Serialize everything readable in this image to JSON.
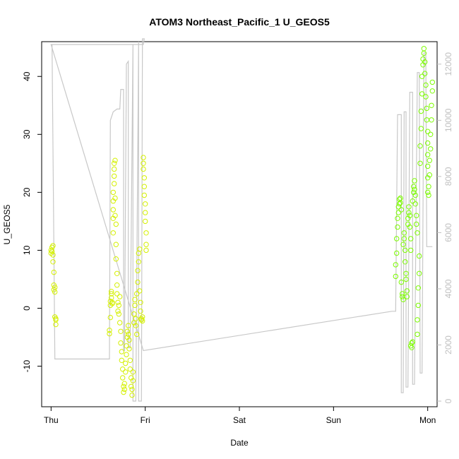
{
  "chart_data": {
    "type": "scatter",
    "title": "ATOM3 Northeast_Pacific_1 U_GEOS5",
    "xlabel": "Date",
    "ylabel": "U_GEOS5",
    "x_tick_labels": [
      "Thu",
      "Fri",
      "Sat",
      "Sun",
      "Mon"
    ],
    "x_tick_days": [
      0,
      1,
      2,
      3,
      4
    ],
    "xlim": [
      -0.1,
      4.1
    ],
    "ylim": [
      -17,
      46
    ],
    "y_ticks": [
      -10,
      0,
      10,
      20,
      30,
      40
    ],
    "y_right_label": "",
    "y_right_ticks": [
      0,
      2000,
      4000,
      6000,
      8000,
      10000,
      12000
    ],
    "y_right_lim": [
      -200,
      12800
    ],
    "grid": false,
    "colors": {
      "lime": "#7cfc00",
      "yellow_green": "#d4f000",
      "gray": "#c8c8c8",
      "right_axis": "#c0c0c0"
    },
    "series": [
      {
        "axis": "left",
        "marker": "open-circle",
        "points": [
          [
            0.0,
            9.5
          ],
          [
            0.0,
            10.0
          ],
          [
            0.01,
            10.5
          ],
          [
            0.01,
            9.8
          ],
          [
            0.02,
            9.2
          ],
          [
            0.02,
            10.8
          ],
          [
            0.02,
            8.0
          ],
          [
            0.03,
            6.2
          ],
          [
            0.03,
            4.0
          ],
          [
            0.03,
            3.2
          ],
          [
            0.04,
            2.8
          ],
          [
            0.04,
            3.6
          ],
          [
            0.04,
            -1.5
          ],
          [
            0.05,
            -1.8
          ],
          [
            0.05,
            -2.8
          ],
          [
            0.05,
            -2.0
          ],
          [
            0.62,
            -3.8
          ],
          [
            0.62,
            -4.4
          ],
          [
            0.63,
            -1.6
          ],
          [
            0.63,
            0.5
          ],
          [
            0.63,
            1.2
          ],
          [
            0.64,
            1.8
          ],
          [
            0.64,
            2.5
          ],
          [
            0.64,
            2.9
          ],
          [
            0.65,
            0.8
          ],
          [
            0.65,
            1.0
          ],
          [
            0.66,
            13.0
          ],
          [
            0.66,
            15.5
          ],
          [
            0.66,
            17.0
          ],
          [
            0.66,
            18.5
          ],
          [
            0.66,
            20.0
          ],
          [
            0.67,
            21.5
          ],
          [
            0.67,
            22.8
          ],
          [
            0.67,
            24.0
          ],
          [
            0.67,
            25.0
          ],
          [
            0.68,
            25.5
          ],
          [
            0.68,
            19.0
          ],
          [
            0.68,
            16.0
          ],
          [
            0.69,
            14.5
          ],
          [
            0.69,
            11.0
          ],
          [
            0.69,
            8.5
          ],
          [
            0.7,
            6.0
          ],
          [
            0.7,
            4.0
          ],
          [
            0.7,
            2.5
          ],
          [
            0.71,
            1.0
          ],
          [
            0.71,
            -0.5
          ],
          [
            0.72,
            -1.0
          ],
          [
            0.72,
            0.5
          ],
          [
            0.73,
            2.0
          ],
          [
            0.73,
            -2.5
          ],
          [
            0.74,
            -4.0
          ],
          [
            0.74,
            -6.0
          ],
          [
            0.75,
            -7.5
          ],
          [
            0.75,
            -9.0
          ],
          [
            0.76,
            -10.5
          ],
          [
            0.76,
            -12.0
          ],
          [
            0.77,
            -13.5
          ],
          [
            0.77,
            -14.5
          ],
          [
            0.78,
            -14.0
          ],
          [
            0.78,
            -13.0
          ],
          [
            0.79,
            -11.0
          ],
          [
            0.79,
            -9.5
          ],
          [
            0.8,
            -8.0
          ],
          [
            0.8,
            -6.5
          ],
          [
            0.81,
            -5.0
          ],
          [
            0.81,
            -4.0
          ],
          [
            0.82,
            -3.0
          ],
          [
            0.82,
            -4.5
          ],
          [
            0.83,
            -5.5
          ],
          [
            0.83,
            -7.0
          ],
          [
            0.84,
            -9.0
          ],
          [
            0.84,
            -10.5
          ],
          [
            0.85,
            -12.0
          ],
          [
            0.85,
            -13.5
          ],
          [
            0.86,
            -15.0
          ],
          [
            0.86,
            -14.0
          ],
          [
            0.87,
            -12.5
          ],
          [
            0.87,
            -11.0
          ],
          [
            0.88,
            -2.5
          ],
          [
            0.88,
            -1.0
          ],
          [
            0.89,
            0.5
          ],
          [
            0.89,
            1.5
          ],
          [
            0.9,
            -1.8
          ],
          [
            0.9,
            -3.0
          ],
          [
            0.91,
            -4.5
          ],
          [
            0.91,
            2.5
          ],
          [
            0.92,
            4.5
          ],
          [
            0.92,
            6.5
          ],
          [
            0.93,
            8.0
          ],
          [
            0.93,
            9.5
          ],
          [
            0.94,
            10.2
          ],
          [
            0.94,
            3.0
          ],
          [
            0.95,
            1.0
          ],
          [
            0.95,
            -0.5
          ],
          [
            0.96,
            -1.8
          ],
          [
            0.96,
            -2.0
          ],
          [
            0.97,
            -1.5
          ],
          [
            0.97,
            -2.2
          ],
          [
            0.98,
            26.0
          ],
          [
            0.98,
            25.0
          ],
          [
            0.98,
            24.0
          ],
          [
            0.99,
            22.5
          ],
          [
            0.99,
            21.0
          ],
          [
            0.99,
            19.5
          ],
          [
            1.0,
            18.0
          ],
          [
            1.0,
            16.5
          ],
          [
            1.0,
            15.0
          ],
          [
            1.01,
            13.0
          ],
          [
            1.01,
            11.0
          ],
          [
            1.01,
            10.0
          ],
          [
            3.66,
            5.5
          ],
          [
            3.66,
            7.5
          ],
          [
            3.67,
            9.5
          ],
          [
            3.67,
            12.0
          ],
          [
            3.68,
            14.0
          ],
          [
            3.68,
            15.5
          ],
          [
            3.69,
            16.5
          ],
          [
            3.69,
            17.5
          ],
          [
            3.7,
            18.0
          ],
          [
            3.7,
            18.8
          ],
          [
            3.71,
            19.0
          ],
          [
            3.71,
            18.2
          ],
          [
            3.72,
            17.0
          ],
          [
            3.72,
            4.5
          ],
          [
            3.73,
            2.5
          ],
          [
            3.73,
            2.0
          ],
          [
            3.74,
            1.5
          ],
          [
            3.74,
            11.0
          ],
          [
            3.75,
            13.0
          ],
          [
            3.75,
            12.0
          ],
          [
            3.76,
            10.0
          ],
          [
            3.76,
            8.0
          ],
          [
            3.77,
            6.0
          ],
          [
            3.77,
            5.0
          ],
          [
            3.78,
            3.0
          ],
          [
            3.78,
            2.0
          ],
          [
            3.79,
            14.5
          ],
          [
            3.79,
            15.5
          ],
          [
            3.8,
            16.5
          ],
          [
            3.8,
            17.5
          ],
          [
            3.81,
            16.0
          ],
          [
            3.81,
            14.0
          ],
          [
            3.82,
            12.0
          ],
          [
            3.82,
            10.0
          ],
          [
            3.82,
            -6.5
          ],
          [
            3.83,
            -6.8
          ],
          [
            3.83,
            -6.0
          ],
          [
            3.84,
            -5.8
          ],
          [
            3.84,
            18.5
          ],
          [
            3.85,
            20.0
          ],
          [
            3.85,
            21.0
          ],
          [
            3.86,
            22.0
          ],
          [
            3.86,
            20.5
          ],
          [
            3.87,
            19.5
          ],
          [
            3.87,
            18.0
          ],
          [
            3.88,
            16.0
          ],
          [
            3.88,
            14.5
          ],
          [
            3.89,
            13.0
          ],
          [
            3.89,
            -4.5
          ],
          [
            3.89,
            -2.0
          ],
          [
            3.9,
            0.5
          ],
          [
            3.9,
            3.5
          ],
          [
            3.91,
            6.0
          ],
          [
            3.91,
            9.0
          ],
          [
            3.92,
            25.0
          ],
          [
            3.92,
            28.0
          ],
          [
            3.93,
            31.0
          ],
          [
            3.93,
            34.0
          ],
          [
            3.94,
            37.0
          ],
          [
            3.94,
            40.0
          ],
          [
            3.95,
            42.0
          ],
          [
            3.95,
            43.0
          ],
          [
            3.96,
            44.0
          ],
          [
            3.96,
            44.8
          ],
          [
            3.97,
            42.5
          ],
          [
            3.97,
            40.5
          ],
          [
            3.98,
            38.5
          ],
          [
            3.98,
            36.5
          ],
          [
            3.99,
            34.5
          ],
          [
            3.99,
            32.5
          ],
          [
            4.0,
            30.5
          ],
          [
            4.0,
            28.5
          ],
          [
            4.0,
            26.5
          ],
          [
            4.0,
            24.5
          ],
          [
            4.0,
            22.5
          ],
          [
            4.0,
            20.0
          ],
          [
            4.01,
            19.5
          ],
          [
            4.01,
            21.0
          ],
          [
            4.02,
            23.0
          ],
          [
            4.02,
            25.5
          ],
          [
            4.03,
            27.5
          ],
          [
            4.03,
            30.0
          ],
          [
            4.04,
            32.5
          ],
          [
            4.04,
            35.0
          ],
          [
            4.05,
            37.5
          ],
          [
            4.05,
            39.0
          ]
        ]
      },
      {
        "axis": "right",
        "marker": "line",
        "points": [
          [
            0.0,
            12700
          ],
          [
            0.01,
            12700
          ],
          [
            0.04,
            1500
          ],
          [
            0.62,
            1500
          ],
          [
            0.62,
            1600
          ],
          [
            0.63,
            10000
          ],
          [
            0.66,
            10300
          ],
          [
            0.7,
            10400
          ],
          [
            0.73,
            10400
          ],
          [
            0.74,
            11100
          ],
          [
            0.77,
            11100
          ],
          [
            0.77,
            1800
          ],
          [
            0.78,
            1800
          ],
          [
            0.8,
            12000
          ],
          [
            0.82,
            12100
          ],
          [
            0.82,
            1900
          ],
          [
            0.84,
            1900
          ],
          [
            0.87,
            12700
          ],
          [
            0.87,
            0
          ],
          [
            0.9,
            0
          ],
          [
            0.93,
            12800
          ],
          [
            0.93,
            0
          ],
          [
            0.96,
            0
          ],
          [
            0.97,
            12900
          ],
          [
            0.98,
            12900
          ],
          [
            0.99,
            12900
          ],
          [
            0.98,
            12700
          ],
          [
            0.0,
            12700
          ],
          [
            0.98,
            1800
          ],
          [
            3.62,
            3200
          ],
          [
            3.66,
            3200
          ],
          [
            3.68,
            10200
          ],
          [
            3.72,
            10200
          ],
          [
            3.72,
            300
          ],
          [
            3.74,
            300
          ],
          [
            3.75,
            10300
          ],
          [
            3.77,
            10300
          ],
          [
            3.77,
            500
          ],
          [
            3.79,
            500
          ],
          [
            3.81,
            11000
          ],
          [
            3.84,
            11000
          ],
          [
            3.84,
            600
          ],
          [
            3.86,
            600
          ],
          [
            3.89,
            11700
          ],
          [
            3.91,
            11700
          ],
          [
            3.92,
            1000
          ],
          [
            3.94,
            1000
          ],
          [
            3.96,
            12400
          ],
          [
            3.98,
            12400
          ],
          [
            3.99,
            5500
          ],
          [
            4.05,
            5500
          ]
        ]
      }
    ]
  }
}
